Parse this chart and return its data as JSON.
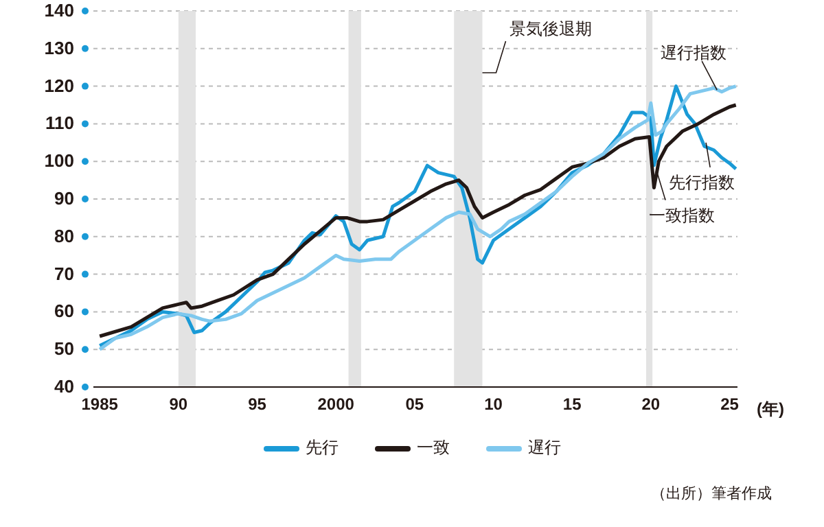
{
  "chart_data": {
    "type": "line",
    "xlabel": "(年)",
    "xlim": [
      1984.6,
      2025.5
    ],
    "ylim": [
      40,
      140
    ],
    "xticks": [
      1985,
      {
        "value": 1990,
        "label": "90"
      },
      {
        "value": 1995,
        "label": "95"
      },
      2000,
      {
        "value": 2005,
        "label": "05"
      },
      {
        "value": 2010,
        "label": "10"
      },
      {
        "value": 2015,
        "label": "15"
      },
      {
        "value": 2020,
        "label": "20"
      },
      {
        "value": 2025,
        "label": "25"
      }
    ],
    "yticks": [
      40,
      50,
      60,
      70,
      80,
      90,
      100,
      110,
      120,
      130,
      140
    ],
    "grid": "y",
    "legend": "bottom",
    "line_style": "solid",
    "marker": "none",
    "series": [
      {
        "name": "先行",
        "color": "#1a9ad6",
        "x": [
          1985,
          1986,
          1987,
          1988,
          1989,
          1990,
          1990.5,
          1991,
          1991.5,
          1992,
          1993,
          1994,
          1995,
          1995.5,
          1996,
          1997,
          1998,
          1998.5,
          1999,
          2000,
          2000.5,
          2001,
          2001.5,
          2002,
          2003,
          2003.6,
          2004,
          2005,
          2005.8,
          2006.5,
          2007,
          2007.5,
          2008,
          2008.5,
          2009,
          2009.3,
          2010,
          2011,
          2012,
          2013,
          2014,
          2015,
          2016,
          2017,
          2018,
          2018.8,
          2019.5,
          2020,
          2020.2,
          2020.6,
          2021,
          2021.6,
          2022.3,
          2022.8,
          2023.4,
          2024,
          2024.5,
          2025,
          2025.4
        ],
        "values": [
          51,
          53,
          55,
          58,
          60,
          59.5,
          59,
          54.5,
          55,
          57,
          60,
          64,
          68,
          70.5,
          71,
          73,
          79,
          81,
          80.5,
          85.5,
          84,
          78,
          76.5,
          79,
          80,
          88,
          89,
          92,
          98.9,
          97,
          96.5,
          96,
          93,
          85,
          74,
          73,
          79,
          82,
          85,
          88,
          92,
          97,
          99,
          102,
          107,
          113,
          113,
          111.5,
          99,
          106,
          111,
          120,
          112.5,
          110,
          104,
          103,
          101,
          99.5,
          98
        ]
      },
      {
        "name": "一致",
        "color": "#231815",
        "x": [
          1985,
          1987,
          1989,
          1990,
          1990.5,
          1990.8,
          1991.5,
          1992.5,
          1993.5,
          1995,
          1996,
          1997,
          1998,
          1999,
          2000,
          2000.7,
          2001.5,
          2002,
          2003,
          2004,
          2005,
          2006,
          2007,
          2007.8,
          2008.3,
          2008.8,
          2009.3,
          2010,
          2011,
          2012,
          2013,
          2014,
          2015,
          2016,
          2017,
          2018,
          2019,
          2019.9,
          2020.2,
          2020.5,
          2021,
          2022,
          2023,
          2024,
          2025,
          2025.4
        ],
        "values": [
          53.5,
          56,
          61,
          62,
          62.5,
          61,
          61.5,
          63,
          64.5,
          68.5,
          70,
          74,
          78,
          81.5,
          85,
          85,
          84,
          84,
          84.5,
          87,
          89.5,
          92,
          94,
          95,
          93,
          88,
          85,
          86.5,
          88.5,
          91,
          92.5,
          95.5,
          98.5,
          99.5,
          101,
          104,
          106,
          106.5,
          93,
          100,
          104,
          108,
          110,
          112.5,
          114.5,
          115
        ]
      },
      {
        "name": "遅行",
        "color": "#7fc8ee",
        "x": [
          1985,
          1986,
          1987,
          1988,
          1989,
          1990,
          1990.8,
          1991.5,
          1992,
          1993,
          1994,
          1995,
          1996,
          1997,
          1998,
          1999,
          2000,
          2000.5,
          2001.5,
          2002.5,
          2003.5,
          2004,
          2005,
          2006,
          2007,
          2007.8,
          2008.5,
          2009,
          2009.8,
          2010.5,
          2011,
          2012,
          2013,
          2014,
          2015,
          2016,
          2017,
          2018,
          2019,
          2019.8,
          2020,
          2020.3,
          2020.7,
          2021,
          2021.8,
          2022.5,
          2023,
          2024,
          2024.5,
          2025,
          2025.4
        ],
        "values": [
          50,
          53,
          54,
          56,
          58.5,
          59.5,
          59,
          58,
          57.5,
          58,
          59.5,
          63,
          65,
          67,
          69,
          72,
          75,
          74,
          73.5,
          74,
          74,
          76,
          79,
          82,
          85,
          86.5,
          86,
          82,
          80,
          82,
          84,
          86,
          89,
          92,
          96,
          99.5,
          102,
          106,
          109,
          111,
          115.5,
          107,
          108,
          110,
          114,
          118,
          118.5,
          119.5,
          118.5,
          119.5,
          120
        ]
      }
    ],
    "bands": [
      {
        "axis": "x",
        "from": 1990.0,
        "to": 1991.1,
        "color": "#e3e3e3"
      },
      {
        "axis": "x",
        "from": 2000.8,
        "to": 2001.6,
        "color": "#e3e3e3"
      },
      {
        "axis": "x",
        "from": 2007.5,
        "to": 2009.3,
        "color": "#e3e3e3",
        "label": "景気後退期"
      },
      {
        "axis": "x",
        "from": 2019.7,
        "to": 2020.1,
        "color": "#e3e3e3"
      }
    ],
    "annotations": [
      {
        "text": "遅行指数",
        "x": 2024.2,
        "y": 119
      },
      {
        "text": "先行指数",
        "x": 2023.5,
        "y": 105
      },
      {
        "text": "一致指数",
        "x": 2020.4,
        "y": 97
      },
      "（出所）筆者作成"
    ]
  }
}
